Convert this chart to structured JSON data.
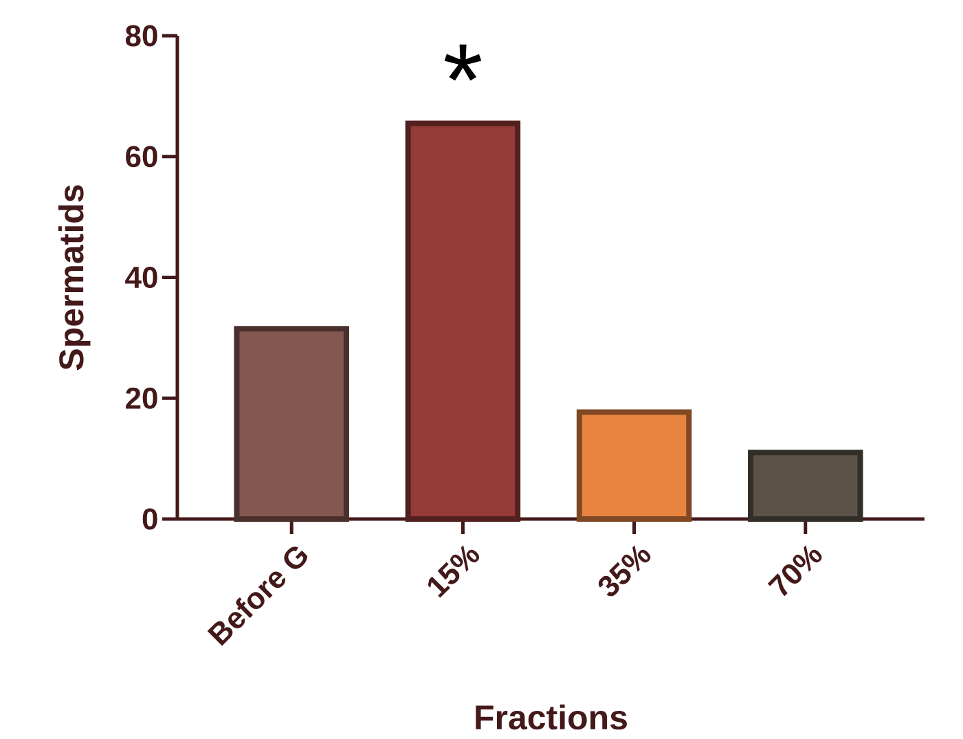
{
  "chart_data": {
    "type": "bar",
    "xlabel": "Fractions",
    "ylabel": "Spermatids",
    "categories": [
      "Before G",
      "15%",
      "35%",
      "70%"
    ],
    "values": [
      31.5,
      65.5,
      17.7,
      11
    ],
    "colors": [
      "#845850",
      "#963c38",
      "#e88440",
      "#5c5248"
    ],
    "ylim": [
      0,
      80
    ],
    "yticks": [
      0,
      20,
      40,
      60,
      80
    ],
    "annotations": [
      "*"
    ]
  }
}
